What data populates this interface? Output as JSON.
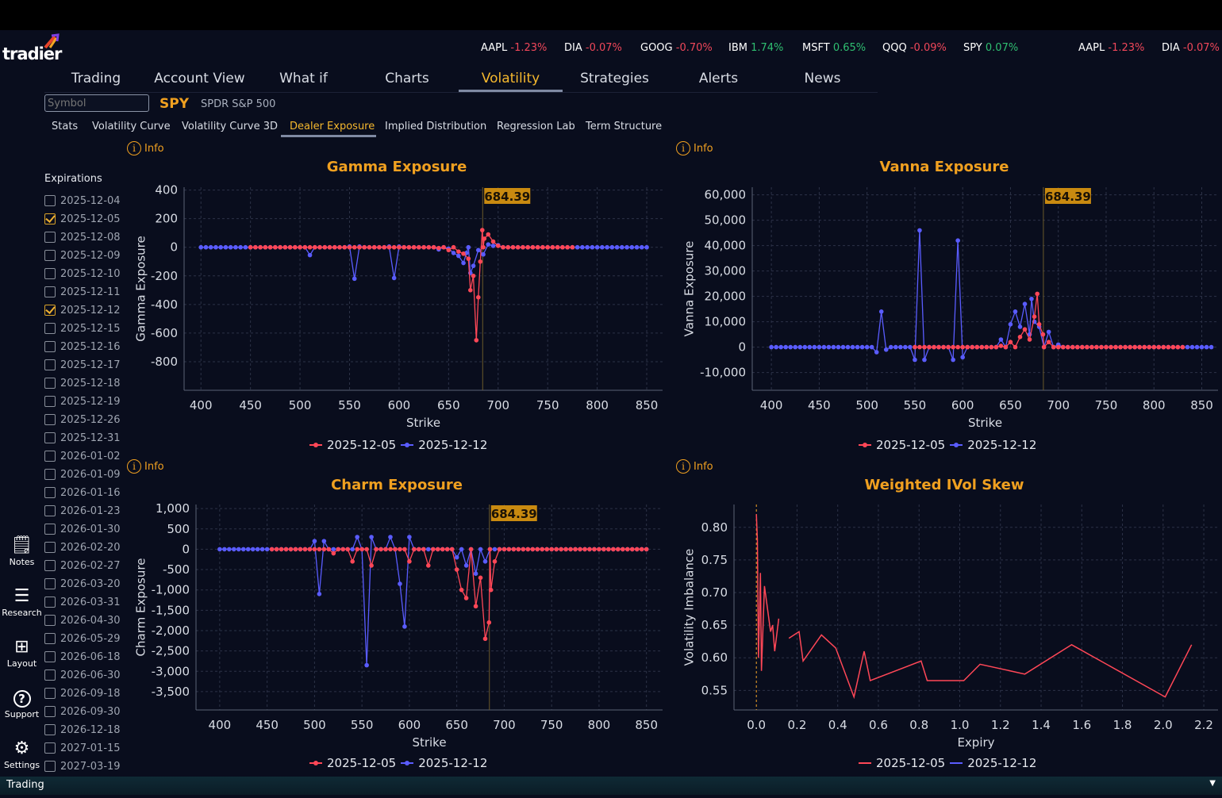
{
  "brand": {
    "name": "tradier"
  },
  "tickers": [
    {
      "symbol": "AAPL",
      "change": "-1.23%",
      "dir": "neg"
    },
    {
      "symbol": "DIA",
      "change": "-0.07%",
      "dir": "neg"
    },
    {
      "symbol": "GOOG",
      "change": "-0.70%",
      "dir": "neg"
    },
    {
      "symbol": "IBM",
      "change": "1.74%",
      "dir": "pos"
    },
    {
      "symbol": "MSFT",
      "change": "0.65%",
      "dir": "pos"
    },
    {
      "symbol": "QQQ",
      "change": "-0.09%",
      "dir": "neg"
    },
    {
      "symbol": "SPY",
      "change": "0.07%",
      "dir": "pos"
    },
    {
      "symbol": "AAPL",
      "change": "-1.23%",
      "dir": "neg"
    },
    {
      "symbol": "DIA",
      "change": "-0.07%",
      "dir": "neg"
    }
  ],
  "nav": [
    "Trading",
    "Account View",
    "What if",
    "Charts",
    "Volatility",
    "Strategies",
    "Alerts",
    "News"
  ],
  "nav_active": "Volatility",
  "symbol": {
    "placeholder": "Symbol",
    "ticker": "SPY",
    "name": "SPDR S&P 500"
  },
  "subtabs": [
    "Stats",
    "Volatility Curve",
    "Volatility Curve 3D",
    "Dealer Exposure",
    "Implied Distribution",
    "Regression Lab",
    "Term Structure"
  ],
  "subtab_active": "Dealer Exposure",
  "info_label": "Info",
  "expirations": {
    "title": "Expirations",
    "items": [
      {
        "date": "2025-12-04",
        "checked": false
      },
      {
        "date": "2025-12-05",
        "checked": true
      },
      {
        "date": "2025-12-08",
        "checked": false
      },
      {
        "date": "2025-12-09",
        "checked": false
      },
      {
        "date": "2025-12-10",
        "checked": false
      },
      {
        "date": "2025-12-11",
        "checked": false
      },
      {
        "date": "2025-12-12",
        "checked": true
      },
      {
        "date": "2025-12-15",
        "checked": false
      },
      {
        "date": "2025-12-16",
        "checked": false
      },
      {
        "date": "2025-12-17",
        "checked": false
      },
      {
        "date": "2025-12-18",
        "checked": false
      },
      {
        "date": "2025-12-19",
        "checked": false
      },
      {
        "date": "2025-12-26",
        "checked": false
      },
      {
        "date": "2025-12-31",
        "checked": false
      },
      {
        "date": "2026-01-02",
        "checked": false
      },
      {
        "date": "2026-01-09",
        "checked": false
      },
      {
        "date": "2026-01-16",
        "checked": false
      },
      {
        "date": "2026-01-23",
        "checked": false
      },
      {
        "date": "2026-01-30",
        "checked": false
      },
      {
        "date": "2026-02-20",
        "checked": false
      },
      {
        "date": "2026-02-27",
        "checked": false
      },
      {
        "date": "2026-03-20",
        "checked": false
      },
      {
        "date": "2026-03-31",
        "checked": false
      },
      {
        "date": "2026-04-30",
        "checked": false
      },
      {
        "date": "2026-05-29",
        "checked": false
      },
      {
        "date": "2026-06-18",
        "checked": false
      },
      {
        "date": "2026-06-30",
        "checked": false
      },
      {
        "date": "2026-09-18",
        "checked": false
      },
      {
        "date": "2026-09-30",
        "checked": false
      },
      {
        "date": "2026-12-18",
        "checked": false
      },
      {
        "date": "2027-01-15",
        "checked": false
      },
      {
        "date": "2027-03-19",
        "checked": false
      }
    ]
  },
  "side_tools": [
    {
      "label": "Notes",
      "icon": "notes-icon"
    },
    {
      "label": "Research",
      "icon": "menu-icon"
    },
    {
      "label": "Layout",
      "icon": "grid-icon"
    },
    {
      "label": "Support",
      "icon": "help-icon"
    },
    {
      "label": "Settings",
      "icon": "gear-icon"
    }
  ],
  "bottom_bar": {
    "label": "Trading"
  },
  "colors": {
    "series1": "#ff4757",
    "series2": "#5a5cff",
    "accent": "#f0a020",
    "spot_label_bg": "#c98a10"
  },
  "chart_data": [
    {
      "type": "line",
      "title": "Gamma Exposure",
      "xlabel": "Strike",
      "ylabel": "Gamma Exposure",
      "xlim": [
        383,
        866
      ],
      "ylim": [
        -1000,
        420
      ],
      "xticks": [
        400,
        450,
        500,
        550,
        600,
        650,
        700,
        750,
        800,
        850
      ],
      "yticks": [
        400,
        200,
        0,
        -200,
        -400,
        -600,
        -800
      ],
      "ytick_labels": [
        "400",
        "200",
        "0",
        "-200",
        "-400",
        "-600",
        "-800"
      ],
      "spot": 684.39,
      "spot_label": "684.39",
      "legend": [
        "2025-12-05",
        "2025-12-12"
      ],
      "legend_position": "bottom-center",
      "markers": true,
      "series": [
        {
          "name": "2025-12-12",
          "x_min": 400,
          "x_max": 850,
          "step": 5,
          "nonzero": [
            [
              510,
              -55
            ],
            [
              550,
              5
            ],
            [
              555,
              -220
            ],
            [
              560,
              5
            ],
            [
              590,
              5
            ],
            [
              595,
              -215
            ],
            [
              600,
              5
            ],
            [
              640,
              -15
            ],
            [
              650,
              -10
            ],
            [
              655,
              -40
            ],
            [
              660,
              -60
            ],
            [
              665,
              -110
            ],
            [
              668,
              -40
            ],
            [
              672,
              -180
            ],
            [
              675,
              -130
            ],
            [
              680,
              -20
            ],
            [
              685,
              -50
            ],
            [
              690,
              20
            ],
            [
              695,
              10
            ],
            [
              700,
              15
            ]
          ]
        },
        {
          "name": "2025-12-05",
          "x_min": 450,
          "x_max": 775,
          "step": 5,
          "nonzero": [
            [
              640,
              -5
            ],
            [
              650,
              -20
            ],
            [
              660,
              -30
            ],
            [
              665,
              -45
            ],
            [
              670,
              -80
            ],
            [
              672,
              -300
            ],
            [
              675,
              -200
            ],
            [
              678,
              -650
            ],
            [
              680,
              -350
            ],
            [
              682,
              -100
            ],
            [
              684,
              120
            ],
            [
              686,
              60
            ],
            [
              690,
              90
            ],
            [
              695,
              40
            ],
            [
              700,
              10
            ]
          ]
        }
      ]
    },
    {
      "type": "line",
      "title": "Vanna Exposure",
      "xlabel": "Strike",
      "ylabel": "Vanna Exposure",
      "xlim": [
        380,
        867
      ],
      "ylim": [
        -17000,
        63000
      ],
      "xticks": [
        400,
        450,
        500,
        550,
        600,
        650,
        700,
        750,
        800,
        850
      ],
      "yticks": [
        60000,
        50000,
        40000,
        30000,
        20000,
        10000,
        0,
        -10000
      ],
      "ytick_labels": [
        "60,000",
        "50,000",
        "40,000",
        "30,000",
        "20,000",
        "10,000",
        "0",
        "-10,000"
      ],
      "spot": 684.39,
      "spot_label": "684.39",
      "legend": [
        "2025-12-05",
        "2025-12-12"
      ],
      "legend_position": "bottom-center",
      "markers": true,
      "series": [
        {
          "name": "2025-12-12",
          "x_min": 400,
          "x_max": 860,
          "step": 5,
          "nonzero": [
            [
              510,
              -2000
            ],
            [
              515,
              14000
            ],
            [
              520,
              -1000
            ],
            [
              550,
              -5000
            ],
            [
              555,
              46000
            ],
            [
              560,
              -5000
            ],
            [
              590,
              -5000
            ],
            [
              595,
              42000
            ],
            [
              600,
              -4000
            ],
            [
              640,
              3000
            ],
            [
              650,
              9000
            ],
            [
              655,
              14000
            ],
            [
              660,
              8000
            ],
            [
              665,
              17000
            ],
            [
              670,
              5000
            ],
            [
              672,
              19000
            ],
            [
              675,
              10000
            ],
            [
              680,
              8000
            ],
            [
              690,
              6000
            ],
            [
              700,
              1000
            ]
          ]
        },
        {
          "name": "2025-12-05",
          "x_min": 550,
          "x_max": 830,
          "step": 5,
          "nonzero": [
            [
              640,
              500
            ],
            [
              650,
              2000
            ],
            [
              660,
              4000
            ],
            [
              665,
              7000
            ],
            [
              670,
              3000
            ],
            [
              675,
              12000
            ],
            [
              678,
              21000
            ],
            [
              680,
              9000
            ],
            [
              684,
              5000
            ],
            [
              690,
              2000
            ]
          ]
        }
      ]
    },
    {
      "type": "line",
      "title": "Charm Exposure",
      "xlabel": "Strike",
      "ylabel": "Charm Exposure",
      "xlim": [
        375,
        867
      ],
      "ylim": [
        -3950,
        1100
      ],
      "xticks": [
        400,
        450,
        500,
        550,
        600,
        650,
        700,
        750,
        800,
        850
      ],
      "yticks": [
        1000,
        500,
        0,
        -500,
        -1000,
        -1500,
        -2000,
        -2500,
        -3000,
        -3500
      ],
      "ytick_labels": [
        "1,000",
        "500",
        "0",
        "-500",
        "-1,000",
        "-1,500",
        "-2,000",
        "-2,500",
        "-3,000",
        "-3,500"
      ],
      "spot": 684.39,
      "spot_label": "684.39",
      "legend": [
        "2025-12-05",
        "2025-12-12"
      ],
      "legend_position": "bottom-center",
      "markers": true,
      "series": [
        {
          "name": "2025-12-12",
          "x_min": 400,
          "x_max": 850,
          "step": 5,
          "nonzero": [
            [
              500,
              200
            ],
            [
              505,
              -1100
            ],
            [
              510,
              200
            ],
            [
              545,
              300
            ],
            [
              555,
              -2850
            ],
            [
              560,
              300
            ],
            [
              580,
              300
            ],
            [
              590,
              -850
            ],
            [
              595,
              -1900
            ],
            [
              600,
              300
            ],
            [
              650,
              -200
            ],
            [
              660,
              -400
            ],
            [
              670,
              -600
            ],
            [
              680,
              -300
            ]
          ]
        },
        {
          "name": "2025-12-05",
          "x_min": 455,
          "x_max": 850,
          "step": 5,
          "nonzero": [
            [
              520,
              -100
            ],
            [
              540,
              -300
            ],
            [
              560,
              -400
            ],
            [
              600,
              -300
            ],
            [
              620,
              -400
            ],
            [
              650,
              -500
            ],
            [
              655,
              -1000
            ],
            [
              660,
              -1200
            ],
            [
              670,
              -1400
            ],
            [
              675,
              -700
            ],
            [
              680,
              -2200
            ],
            [
              684,
              -1800
            ],
            [
              686,
              -1000
            ],
            [
              690,
              -300
            ]
          ]
        }
      ]
    },
    {
      "type": "line",
      "title": "Weighted IVol Skew",
      "xlabel": "Expiry",
      "ylabel": "Volatility Imbalance",
      "xlim": [
        -0.11,
        2.27
      ],
      "ylim": [
        0.52,
        0.835
      ],
      "xticks": [
        0,
        0.2,
        0.4,
        0.6,
        0.8,
        1.0,
        1.2,
        1.4,
        1.6,
        1.8,
        2.0,
        2.2
      ],
      "xtick_labels": [
        "0.0",
        "0.2",
        "0.4",
        "0.6",
        "0.8",
        "1.0",
        "1.2",
        "1.4",
        "1.6",
        "1.8",
        "2.0",
        "2.2"
      ],
      "yticks": [
        0.8,
        0.75,
        0.7,
        0.65,
        0.6,
        0.55
      ],
      "ytick_labels": [
        "0.80",
        "0.75",
        "0.70",
        "0.65",
        "0.60",
        "0.55"
      ],
      "spot": 0,
      "legend": [
        "2025-12-05",
        "2025-12-12"
      ],
      "legend_position": "bottom-center",
      "markers": false,
      "series": [
        {
          "name": "2025-12-05",
          "points": [
            [
              0,
              0.82
            ],
            [
              0.005,
              0.78
            ],
            [
              0.01,
              0.6
            ],
            [
              0.02,
              0.73
            ],
            [
              0.025,
              0.58
            ],
            [
              0.04,
              0.71
            ],
            [
              0.07,
              0.64
            ],
            [
              0.08,
              0.65
            ],
            [
              0.09,
              0.61
            ],
            [
              0.11,
              0.66
            ]
          ]
        },
        {
          "name": "2025-12-12",
          "points": [
            [
              0.16,
              0.63
            ],
            [
              0.21,
              0.64
            ],
            [
              0.23,
              0.595
            ],
            [
              0.32,
              0.635
            ],
            [
              0.39,
              0.615
            ],
            [
              0.48,
              0.54
            ],
            [
              0.53,
              0.61
            ],
            [
              0.56,
              0.565
            ],
            [
              0.81,
              0.595
            ],
            [
              0.84,
              0.565
            ],
            [
              1.02,
              0.565
            ],
            [
              1.1,
              0.59
            ],
            [
              1.32,
              0.575
            ],
            [
              1.55,
              0.62
            ],
            [
              2.01,
              0.54
            ],
            [
              2.14,
              0.62
            ]
          ]
        }
      ]
    }
  ]
}
